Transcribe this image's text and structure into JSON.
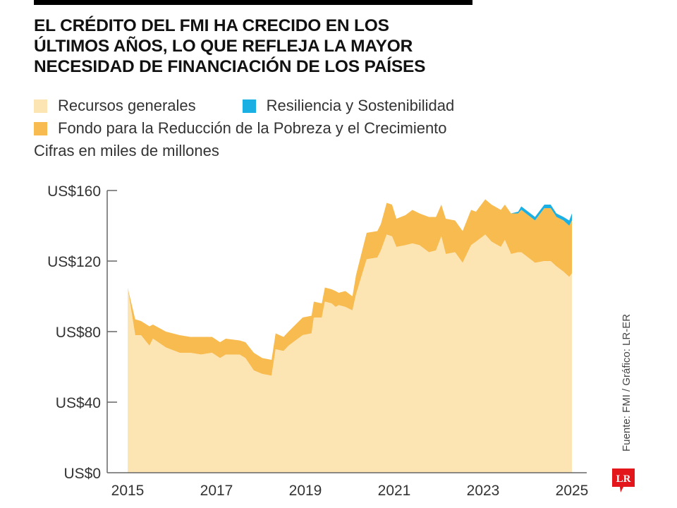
{
  "header": {
    "title_lines": [
      "EL CRÉDITO DEL FMI HA CRECIDO EN LOS",
      "ÚLTIMOS AÑOS, LO QUE REFLEJA LA MAYOR",
      "NECESIDAD DE FINANCIACIÓN DE LOS PAÍSES"
    ]
  },
  "legend": {
    "items": [
      {
        "label": "Recursos generales",
        "color": "#fde4b3"
      },
      {
        "label": "Resiliencia y Sostenibilidad",
        "color": "#1ab0e3"
      },
      {
        "label": "Fondo para la Reducción de la Pobreza y el Crecimiento",
        "color": "#f7bb4f"
      }
    ],
    "note": "Cifras en miles de millones"
  },
  "footer": {
    "source": "Fuente: FMI / Gráfico: LR-ER",
    "logo_text": "LR",
    "logo_color": "#e3161c"
  },
  "chart_data": {
    "type": "area",
    "stacked": true,
    "title": "EL CRÉDITO DEL FMI HA CRECIDO EN LOS ÚLTIMOS AÑOS, LO QUE REFLEJA LA MAYOR NECESIDAD DE FINANCIACIÓN DE LOS PAÍSES",
    "xlabel": "",
    "ylabel": "",
    "ylim": [
      0,
      160
    ],
    "xlim": [
      2015,
      2025
    ],
    "yticks": [
      0,
      40,
      80,
      120,
      160
    ],
    "ytick_labels": [
      "US$0",
      "US$40",
      "US$80",
      "US$120",
      "US$160"
    ],
    "xticks": [
      2015,
      2017,
      2019,
      2021,
      2023,
      2025
    ],
    "xtick_labels": [
      "2015",
      "2017",
      "2019",
      "2021",
      "2023",
      "2025"
    ],
    "grid": false,
    "legend_position": "top",
    "x": [
      2015.0,
      2015.17,
      2015.3,
      2015.49,
      2015.57,
      2015.86,
      2016.17,
      2016.41,
      2016.65,
      2016.9,
      2017.08,
      2017.21,
      2017.52,
      2017.65,
      2017.84,
      2018.03,
      2018.24,
      2018.33,
      2018.51,
      2018.62,
      2018.78,
      2018.94,
      2019.14,
      2019.19,
      2019.37,
      2019.44,
      2019.59,
      2019.68,
      2019.75,
      2019.9,
      2020.06,
      2020.14,
      2020.38,
      2020.62,
      2020.7,
      2020.83,
      2020.95,
      2021.05,
      2021.25,
      2021.41,
      2021.57,
      2021.78,
      2021.94,
      2022.06,
      2022.16,
      2022.37,
      2022.54,
      2022.73,
      2022.84,
      2023.05,
      2023.19,
      2023.4,
      2023.49,
      2023.63,
      2023.79,
      2023.86,
      2024.17,
      2024.38,
      2024.52,
      2024.65,
      2024.81,
      2024.94,
      2025.0
    ],
    "series": [
      {
        "name": "Recursos generales",
        "color": "#fde4b3",
        "values": [
          105,
          78,
          78,
          72,
          76,
          71,
          68,
          68,
          67,
          68,
          65,
          67,
          67,
          65,
          58,
          56,
          55,
          70,
          69,
          72,
          75,
          78,
          79,
          88,
          88,
          97,
          96,
          94,
          95,
          94,
          92,
          101,
          121,
          122,
          126,
          135,
          134,
          128,
          129,
          130,
          129,
          125,
          126,
          134,
          124,
          125,
          119,
          129,
          131,
          135,
          131,
          128,
          132,
          124,
          125,
          125,
          119,
          120,
          120,
          117,
          114,
          111,
          113
        ]
      },
      {
        "name": "Fondo para la Reducción de la Pobreza y el Crecimiento",
        "color": "#f7bb4f",
        "values": [
          0,
          9,
          8,
          11,
          8,
          9,
          10,
          9,
          10,
          9,
          9,
          9,
          8,
          9,
          10,
          9,
          9,
          9,
          8,
          8,
          9,
          10,
          10,
          9,
          8,
          8,
          8,
          9,
          7,
          9,
          8,
          11,
          15,
          15,
          15,
          18,
          18,
          16,
          17,
          19,
          18,
          20,
          19,
          18,
          20,
          18,
          18,
          20,
          17,
          20,
          21,
          21,
          20,
          23,
          22,
          24,
          24,
          30,
          30,
          28,
          29,
          29,
          30
        ]
      },
      {
        "name": "Resiliencia y Sostenibilidad",
        "color": "#1ab0e3",
        "values": [
          0,
          0,
          0,
          0,
          0,
          0,
          0,
          0,
          0,
          0,
          0,
          0,
          0,
          0,
          0,
          0,
          0,
          0,
          0,
          0,
          0,
          0,
          0,
          0,
          0,
          0,
          0,
          0,
          0,
          0,
          0,
          0,
          0,
          0,
          0,
          0,
          0,
          0,
          0,
          0,
          0,
          0,
          0,
          0,
          0,
          0,
          0,
          0,
          0,
          0,
          0,
          0,
          0,
          0,
          1,
          2,
          2,
          2,
          2,
          2,
          2,
          3,
          4
        ]
      }
    ]
  }
}
